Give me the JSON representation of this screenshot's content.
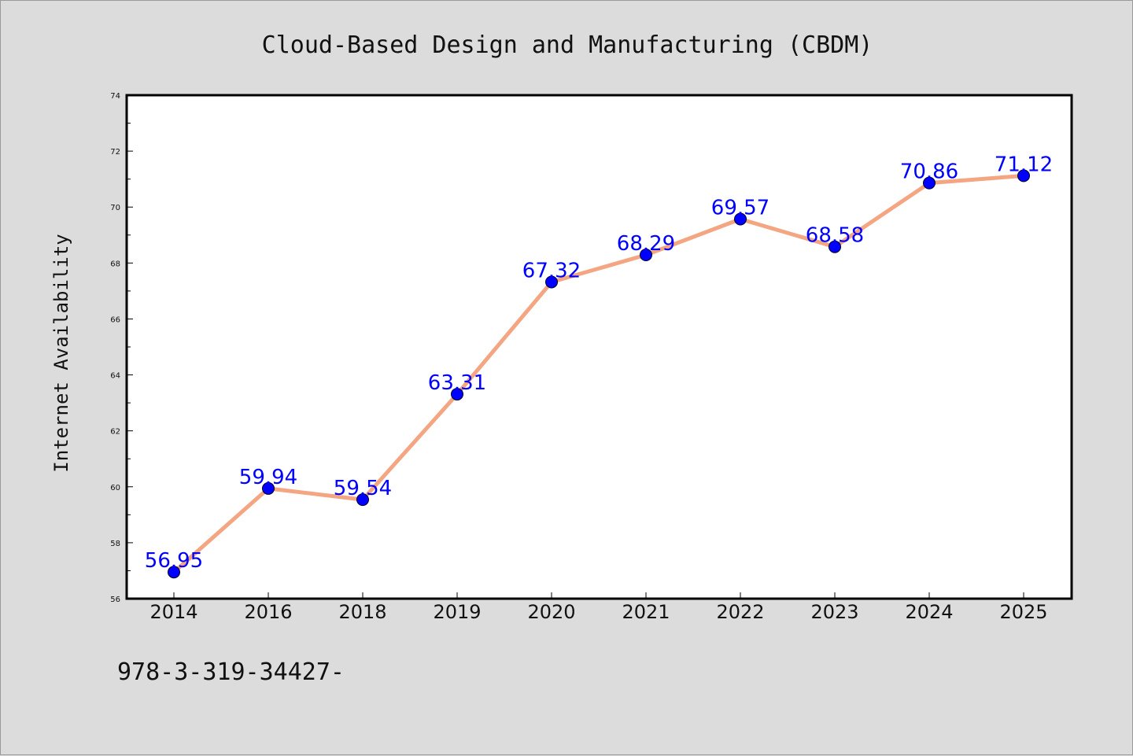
{
  "chart_data": {
    "type": "line",
    "title": "Cloud-Based Design and Manufacturing (CBDM)",
    "ylabel": "Internet Availability",
    "xlabel": "",
    "categories": [
      "2014",
      "2016",
      "2018",
      "2019",
      "2020",
      "2021",
      "2022",
      "2023",
      "2024",
      "2025"
    ],
    "series": [
      {
        "values": [
          56.95,
          59.94,
          59.54,
          63.31,
          67.32,
          68.29,
          69.57,
          68.58,
          70.86,
          71.12
        ],
        "labels": [
          "56.95",
          "59.94",
          "59.54",
          "63.31",
          "67.32",
          "68.29",
          "69.57",
          "68.58",
          "70.86",
          "71.12"
        ]
      }
    ],
    "ylim": [
      56,
      74
    ],
    "yticks": [
      "56",
      "58",
      "60",
      "62",
      "64",
      "66",
      "68",
      "70",
      "72",
      "74"
    ],
    "grid": false,
    "colors": {
      "line": "#f4a582",
      "marker": "#0000ff",
      "label": "#0000ff",
      "plot_bg": "#ffffff",
      "page_bg": "#dcdcdc"
    }
  },
  "footer": {
    "text": "978-3-319-34427-"
  }
}
